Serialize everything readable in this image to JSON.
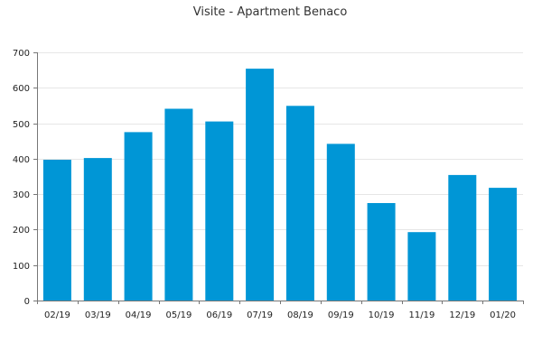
{
  "chart_data": {
    "type": "bar",
    "title": "Visite - Apartment Benaco",
    "xlabel": "",
    "ylabel": "",
    "categories": [
      "02/19",
      "03/19",
      "04/19",
      "05/19",
      "06/19",
      "07/19",
      "08/19",
      "09/19",
      "10/19",
      "11/19",
      "12/19",
      "01/20"
    ],
    "values": [
      397,
      402,
      475,
      541,
      505,
      654,
      549,
      442,
      275,
      193,
      354,
      318
    ],
    "ylim": [
      0,
      700
    ],
    "yticks": [
      0,
      100,
      200,
      300,
      400,
      500,
      600,
      700
    ],
    "grid": true,
    "legend": "none",
    "bar_color": "#0096d6"
  }
}
